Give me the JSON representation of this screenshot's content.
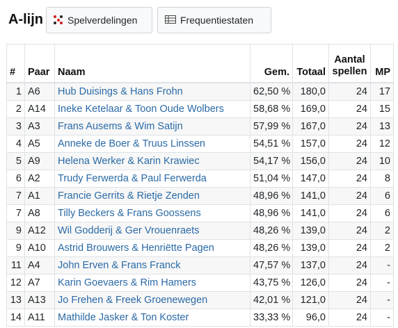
{
  "page": {
    "title": "A-lijn"
  },
  "toolbar": {
    "spelverdelingen_label": "Spelverdelingen",
    "frequentiestaten_label": "Frequentiestaten",
    "spelverdelingen_icon": "dice-icon",
    "frequentiestaten_icon": "table-icon"
  },
  "table": {
    "headers": {
      "rank": "#",
      "paar": "Paar",
      "naam": "Naam",
      "gem": "Gem.",
      "totaal": "Totaal",
      "aantal_spellen_1": "Aantal",
      "aantal_spellen_2": "spellen",
      "mp": "MP"
    },
    "rows": [
      {
        "rank": "1",
        "paar": "A6",
        "naam": "Hub Duisings & Hans Frohn",
        "gem": "62,50 %",
        "totaal": "180,0",
        "spellen": "24",
        "mp": "17"
      },
      {
        "rank": "2",
        "paar": "A14",
        "naam": "Ineke Ketelaar & Toon Oude Wolbers",
        "gem": "58,68 %",
        "totaal": "169,0",
        "spellen": "24",
        "mp": "15"
      },
      {
        "rank": "3",
        "paar": "A3",
        "naam": "Frans Ausems & Wim Satijn",
        "gem": "57,99 %",
        "totaal": "167,0",
        "spellen": "24",
        "mp": "13"
      },
      {
        "rank": "4",
        "paar": "A5",
        "naam": "Anneke de Boer & Truus Linssen",
        "gem": "54,51 %",
        "totaal": "157,0",
        "spellen": "24",
        "mp": "12"
      },
      {
        "rank": "5",
        "paar": "A9",
        "naam": "Helena Werker & Karin Krawiec",
        "gem": "54,17 %",
        "totaal": "156,0",
        "spellen": "24",
        "mp": "10"
      },
      {
        "rank": "6",
        "paar": "A2",
        "naam": "Trudy Ferwerda & Paul Ferwerda",
        "gem": "51,04 %",
        "totaal": "147,0",
        "spellen": "24",
        "mp": "8"
      },
      {
        "rank": "7",
        "paar": "A1",
        "naam": "Francie Gerrits & Rietje Zenden",
        "gem": "48,96 %",
        "totaal": "141,0",
        "spellen": "24",
        "mp": "6"
      },
      {
        "rank": "7",
        "paar": "A8",
        "naam": "Tilly Beckers & Frans Goossens",
        "gem": "48,96 %",
        "totaal": "141,0",
        "spellen": "24",
        "mp": "6"
      },
      {
        "rank": "9",
        "paar": "A12",
        "naam": "Wil Godderij & Ger Vrouenraets",
        "gem": "48,26 %",
        "totaal": "139,0",
        "spellen": "24",
        "mp": "2"
      },
      {
        "rank": "9",
        "paar": "A10",
        "naam": "Astrid Brouwers & Henriëtte Pagen",
        "gem": "48,26 %",
        "totaal": "139,0",
        "spellen": "24",
        "mp": "2"
      },
      {
        "rank": "11",
        "paar": "A4",
        "naam": "John Erven & Frans Franck",
        "gem": "47,57 %",
        "totaal": "137,0",
        "spellen": "24",
        "mp": "-"
      },
      {
        "rank": "12",
        "paar": "A7",
        "naam": "Karin Goevaers & Rim Hamers",
        "gem": "43,75 %",
        "totaal": "126,0",
        "spellen": "24",
        "mp": "-"
      },
      {
        "rank": "13",
        "paar": "A13",
        "naam": "Jo Frehen & Freek Groenewegen",
        "gem": "42,01 %",
        "totaal": "121,0",
        "spellen": "24",
        "mp": "-"
      },
      {
        "rank": "14",
        "paar": "A11",
        "naam": "Mathilde Jasker & Ton Koster",
        "gem": "33,33 %",
        "totaal": "96,0",
        "spellen": "24",
        "mp": "-"
      }
    ]
  }
}
